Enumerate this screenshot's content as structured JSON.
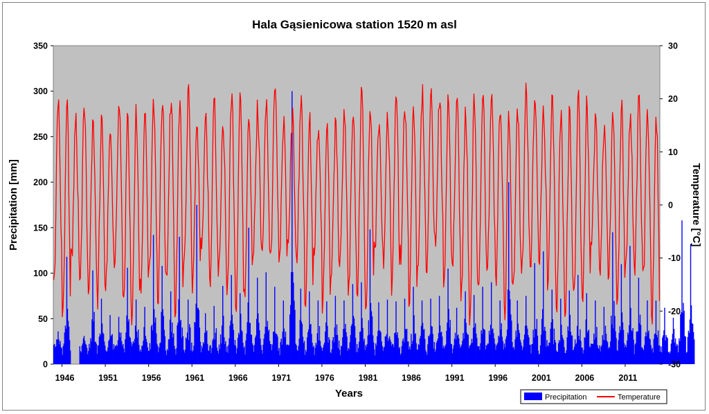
{
  "chart_data": {
    "type": "bar+line",
    "title": "Hala Gąsienicowa station 1520 m asl",
    "xlabel": "Years",
    "ylabel_left": "Precipitation  [mm]",
    "ylabel_right": "Temperature [°C]",
    "ylim_left": [
      0,
      350
    ],
    "ylim_right": [
      -30,
      30
    ],
    "yticks_left": [
      "0",
      "50",
      "100",
      "150",
      "200",
      "250",
      "300",
      "350"
    ],
    "yticks_right": [
      "-30",
      "-20",
      "-10",
      "0",
      "10",
      "20",
      "30"
    ],
    "xticks": [
      "1946",
      "1951",
      "1956",
      "1961",
      "1966",
      "1971",
      "1976",
      "1981",
      "1986",
      "1991",
      "1996",
      "2001",
      "2006",
      "2011"
    ],
    "x_range": [
      "1945-01",
      "2014-12"
    ],
    "resolution": "monthly",
    "plot_background": "#c0c0c0",
    "legend_position": "bottom-right",
    "series": [
      {
        "name": "Precipitation",
        "axis": "left",
        "kind": "bar",
        "color": "#0000ff",
        "annual_peak_mm": [
          36,
          118,
          0,
          31,
          103,
          72,
          54,
          52,
          106,
          71,
          63,
          142,
          108,
          80,
          140,
          71,
          175,
          56,
          64,
          86,
          98,
          78,
          150,
          95,
          101,
          85,
          70,
          300,
          83,
          80,
          70,
          69,
          75,
          70,
          88,
          90,
          148,
          68,
          71,
          69,
          72,
          85,
          70,
          72,
          75,
          105,
          62,
          80,
          76,
          85,
          90,
          70,
          200,
          70,
          75,
          111,
          124,
          82,
          72,
          81,
          98,
          78,
          70,
          63,
          145,
          110,
          130,
          95,
          70,
          70,
          62,
          51,
          158,
          132
        ],
        "baseline_mm": 15
      },
      {
        "name": "Temperature",
        "axis": "right",
        "kind": "line",
        "color": "#ff0000",
        "summer_peak_c_range": [
          15,
          21.5
        ],
        "winter_min_c_range": [
          -22,
          -8
        ]
      }
    ]
  }
}
